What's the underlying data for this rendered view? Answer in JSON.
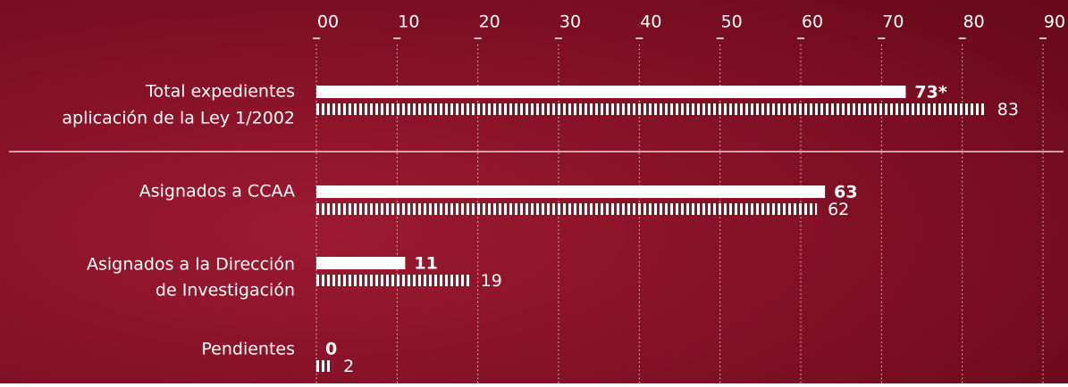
{
  "chart_data": {
    "type": "bar",
    "orientation": "horizontal",
    "categories": [
      [
        "Total expedientes",
        "aplicación de la Ley 1/2002"
      ],
      [
        "Asignados a CCAA"
      ],
      [
        "Asignados a la Dirección",
        "de Investigación"
      ],
      [
        "Pendientes"
      ]
    ],
    "series": [
      {
        "color": "#ffffff",
        "style": "solid",
        "values": [
          73,
          63,
          11,
          0
        ],
        "value_labels": [
          "73*",
          "63",
          "11",
          "0"
        ]
      },
      {
        "color": "#ffffff",
        "style": "striped",
        "values": [
          83,
          62,
          19,
          2
        ]
      }
    ],
    "xlim": [
      0,
      90
    ],
    "xticks": [
      {
        "value": 0,
        "label": "00"
      },
      10,
      20,
      30,
      40,
      50,
      60,
      70,
      80,
      90
    ],
    "grid": true
  }
}
